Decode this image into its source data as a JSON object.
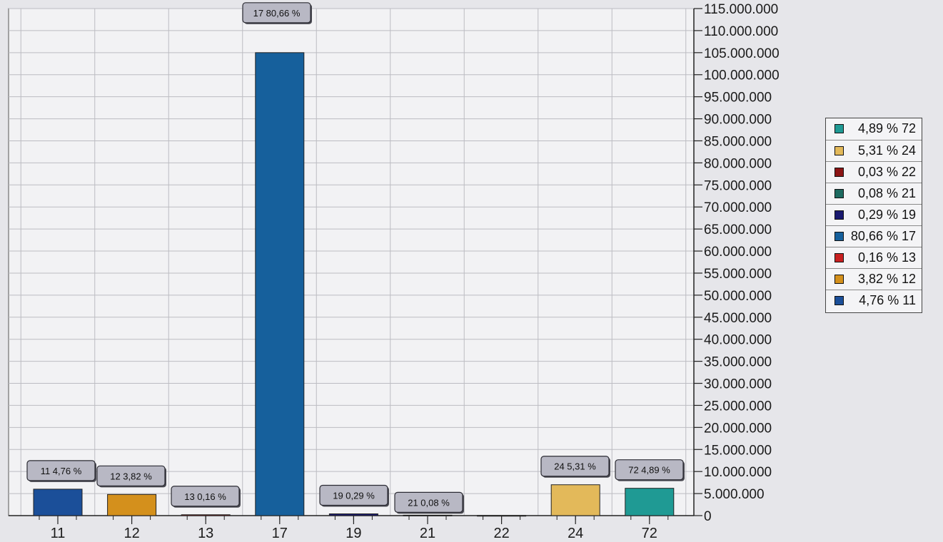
{
  "chart_data": {
    "type": "bar",
    "title": "",
    "xlabel": "",
    "ylabel": "",
    "categories": [
      "11",
      "12",
      "13",
      "17",
      "19",
      "21",
      "22",
      "24",
      "72"
    ],
    "values": [
      6000000,
      4800000,
      200000,
      105000000,
      400000,
      100000,
      40000,
      7000000,
      6200000
    ],
    "colors": [
      "#1b4f99",
      "#d4901c",
      "#c82020",
      "#16609c",
      "#1a1a70",
      "#1d6a60",
      "#8c1515",
      "#e3b95a",
      "#1f9a94"
    ],
    "data_labels": [
      "11 4,76 %",
      "12 3,82 %",
      "13 0,16 %",
      "17 80,66 %",
      "19 0,29 %",
      "21 0,08 %",
      "",
      "24 5,31 %",
      "72 4,89 %"
    ],
    "ylim": [
      0,
      115000000
    ],
    "ytick_labels": [
      "0",
      "5.000.000",
      "10.000.000",
      "15.000.000",
      "20.000.000",
      "25.000.000",
      "30.000.000",
      "35.000.000",
      "40.000.000",
      "45.000.000",
      "50.000.000",
      "55.000.000",
      "60.000.000",
      "65.000.000",
      "70.000.000",
      "75.000.000",
      "80.000.000",
      "85.000.000",
      "90.000.000",
      "95.000.000",
      "100.000.000",
      "105.000.000",
      "110.000.000",
      "115.000.000"
    ],
    "y_axis_position": "right",
    "grid": true,
    "legend": {
      "position": "right",
      "entries": [
        {
          "label": "4,89 % 72",
          "color": "#1f9a94"
        },
        {
          "label": "5,31 % 24",
          "color": "#e3b95a"
        },
        {
          "label": "0,03 % 22",
          "color": "#8c1515"
        },
        {
          "label": "0,08 % 21",
          "color": "#1d6a60"
        },
        {
          "label": "0,29 % 19",
          "color": "#1a1a70"
        },
        {
          "label": "80,66 % 17",
          "color": "#16609c"
        },
        {
          "label": "0,16 % 13",
          "color": "#c82020"
        },
        {
          "label": "3,82 % 12",
          "color": "#d4901c"
        },
        {
          "label": "4,76 % 11",
          "color": "#1b4f99"
        }
      ]
    }
  }
}
